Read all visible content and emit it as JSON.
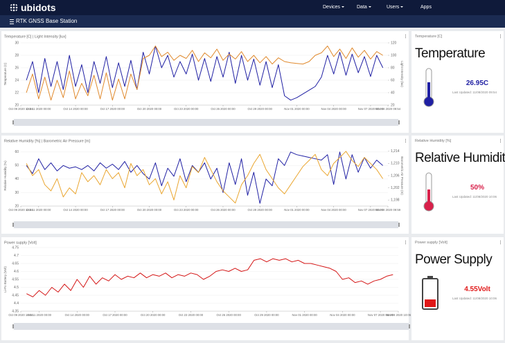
{
  "header": {
    "logo": "ubidots",
    "nav": [
      "Devices",
      "Data",
      "Users",
      "Apps"
    ],
    "dashboard": "RTK GNSS Base Station"
  },
  "chart_data": [
    {
      "type": "line",
      "title": "Temperature [C] | Light Intensity [lux]",
      "y_label": "Temperature (C)",
      "y2_label": "Light Intensity (lux)",
      "x": [
        "2020-10-10T00:00",
        "2020-10-10T12:00",
        "2020-10-11T00:00",
        "2020-10-11T12:00",
        "2020-10-12T00:00",
        "2020-10-12T12:00",
        "2020-10-13T00:00",
        "2020-10-13T12:00",
        "2020-10-14T00:00",
        "2020-10-14T12:00",
        "2020-10-15T00:00",
        "2020-10-15T12:00",
        "2020-10-16T00:00",
        "2020-10-16T12:00",
        "2020-10-17T00:00",
        "2020-10-17T12:00",
        "2020-10-18T00:00",
        "2020-10-18T12:00",
        "2020-10-19T00:00",
        "2020-10-19T12:00",
        "2020-10-20T00:00",
        "2020-10-20T12:00",
        "2020-10-21T00:00",
        "2020-10-21T12:00",
        "2020-10-22T00:00",
        "2020-10-22T12:00",
        "2020-10-23T00:00",
        "2020-10-23T12:00",
        "2020-10-24T00:00",
        "2020-10-24T12:00",
        "2020-10-25T00:00",
        "2020-10-25T12:00",
        "2020-10-26T00:00",
        "2020-10-26T12:00",
        "2020-10-27T00:00",
        "2020-10-27T12:00",
        "2020-10-28T00:00",
        "2020-10-28T12:00",
        "2020-10-29T00:00",
        "2020-10-29T12:00",
        "2020-10-30T00:00",
        "2020-10-30T12:00",
        "2020-10-31T00:00",
        "2020-10-31T12:00",
        "2020-11-01T00:00",
        "2020-11-01T12:00",
        "2020-11-02T00:00",
        "2020-11-02T12:00",
        "2020-11-03T00:00",
        "2020-11-03T12:00",
        "2020-11-04T00:00",
        "2020-11-04T12:00",
        "2020-11-05T00:00",
        "2020-11-05T12:00",
        "2020-11-06T00:00",
        "2020-11-06T12:00",
        "2020-11-07T00:00",
        "2020-11-07T12:00",
        "2020-11-08T00:00"
      ],
      "xlim": [
        "2020-10-09T13:04",
        "2020-11-08T09:54"
      ],
      "xticks": [
        {
          "value": "2020-10-09T13:04",
          "label": "Oct 09 2020 13:04"
        },
        {
          "value": "2020-10-11T00:00",
          "label": "Oct 11 2020 00:00"
        },
        {
          "value": "2020-10-14T00:00",
          "label": "Oct 14 2020 00:00"
        },
        {
          "value": "2020-10-17T00:00",
          "label": "Oct 17 2020 00:00"
        },
        {
          "value": "2020-10-20T00:00",
          "label": "Oct 20 2020 00:00"
        },
        {
          "value": "2020-10-23T00:00",
          "label": "Oct 23 2020 00:00"
        },
        {
          "value": "2020-10-26T00:00",
          "label": "Oct 26 2020 00:00"
        },
        {
          "value": "2020-10-29T00:00",
          "label": "Oct 29 2020 00:00"
        },
        {
          "value": "2020-11-01T00:00",
          "label": "Nov 01 2020 00:00"
        },
        {
          "value": "2020-11-04T00:00",
          "label": "Nov 04 2020 00:00"
        },
        {
          "value": "2020-11-07T00:00",
          "label": "Nov 07 2020 00:00"
        },
        {
          "value": "2020-11-08T09:54",
          "label": "Nov 08 2020 09:54"
        }
      ],
      "ylim": [
        20,
        30
      ],
      "yticks": [
        20,
        22,
        24,
        26,
        28,
        30
      ],
      "y2lim": [
        20,
        120
      ],
      "y2ticks": [
        20,
        40,
        60,
        80,
        100,
        120
      ],
      "series": [
        {
          "color": "#1f1fa3",
          "values": [
            24,
            27,
            22,
            27.5,
            23,
            27,
            22.5,
            28,
            23,
            26.5,
            22,
            27,
            23.5,
            27.8,
            22.8,
            26.8,
            23,
            27.2,
            22.5,
            28.5,
            25,
            29.5,
            26,
            28,
            24.5,
            27,
            25,
            28.2,
            24,
            27.5,
            23.8,
            27.8,
            24.5,
            28.5,
            23.5,
            28,
            24,
            27.4,
            23.2,
            27,
            22.8,
            26.5,
            21.5,
            20.8,
            21.2,
            21.8,
            22.4,
            23,
            24.5,
            28,
            25,
            28.5,
            24.8,
            28.2,
            25.2,
            27.8,
            24.6,
            28,
            26
          ]
        },
        {
          "color": "#e0892c",
          "axis": "y2",
          "values": [
            40,
            70,
            30,
            65,
            28,
            60,
            32,
            75,
            30,
            55,
            35,
            68,
            30,
            72,
            28,
            62,
            30,
            70,
            45,
            95,
            100,
            115,
            98,
            105,
            92,
            100,
            95,
            108,
            90,
            104,
            96,
            110,
            92,
            102,
            94,
            106,
            90,
            100,
            88,
            98,
            86,
            96,
            90,
            88,
            87,
            86,
            90,
            100,
            104,
            115,
            98,
            110,
            95,
            112,
            97,
            108,
            94,
            106,
            100
          ]
        }
      ]
    },
    {
      "type": "line",
      "title": "Relative Humidity [%] | Barometric Air Pressure [m]",
      "y_label": "Relative Humidity (%)",
      "y2_label": "Barometric Air Pressure (m)",
      "x": [
        "2020-10-10T00:00",
        "2020-10-10T12:00",
        "2020-10-11T00:00",
        "2020-10-11T12:00",
        "2020-10-12T00:00",
        "2020-10-12T12:00",
        "2020-10-13T00:00",
        "2020-10-13T12:00",
        "2020-10-14T00:00",
        "2020-10-14T12:00",
        "2020-10-15T00:00",
        "2020-10-15T12:00",
        "2020-10-16T00:00",
        "2020-10-16T12:00",
        "2020-10-17T00:00",
        "2020-10-17T12:00",
        "2020-10-18T00:00",
        "2020-10-18T12:00",
        "2020-10-19T00:00",
        "2020-10-19T12:00",
        "2020-10-20T00:00",
        "2020-10-20T12:00",
        "2020-10-21T00:00",
        "2020-10-21T12:00",
        "2020-10-22T00:00",
        "2020-10-22T12:00",
        "2020-10-23T00:00",
        "2020-10-23T12:00",
        "2020-10-24T00:00",
        "2020-10-24T12:00",
        "2020-10-25T00:00",
        "2020-10-25T12:00",
        "2020-10-26T00:00",
        "2020-10-26T12:00",
        "2020-10-27T00:00",
        "2020-10-27T12:00",
        "2020-10-28T00:00",
        "2020-10-28T12:00",
        "2020-10-29T00:00",
        "2020-10-29T12:00",
        "2020-10-30T00:00",
        "2020-10-30T12:00",
        "2020-10-31T00:00",
        "2020-10-31T12:00",
        "2020-11-01T00:00",
        "2020-11-01T12:00",
        "2020-11-02T00:00",
        "2020-11-02T12:00",
        "2020-11-03T00:00",
        "2020-11-03T12:00",
        "2020-11-04T00:00",
        "2020-11-04T12:00",
        "2020-11-05T00:00",
        "2020-11-05T12:00",
        "2020-11-06T00:00",
        "2020-11-06T12:00",
        "2020-11-07T00:00",
        "2020-11-07T12:00",
        "2020-11-08T00:00"
      ],
      "xlim": [
        "2020-10-09T13:04",
        "2020-11-08T09:59"
      ],
      "xticks": [
        {
          "value": "2020-10-09T13:04",
          "label": "Oct 09 2020 13:04"
        },
        {
          "value": "2020-10-11T00:00",
          "label": "Oct 11 2020 00:00"
        },
        {
          "value": "2020-10-14T00:00",
          "label": "Oct 14 2020 00:00"
        },
        {
          "value": "2020-10-17T00:00",
          "label": "Oct 17 2020 00:00"
        },
        {
          "value": "2020-10-20T00:00",
          "label": "Oct 20 2020 00:00"
        },
        {
          "value": "2020-10-23T00:00",
          "label": "Oct 23 2020 00:00"
        },
        {
          "value": "2020-10-26T00:00",
          "label": "Oct 26 2020 00:00"
        },
        {
          "value": "2020-10-29T00:00",
          "label": "Oct 29 2020 00:00"
        },
        {
          "value": "2020-11-01T00:00",
          "label": "Nov 01 2020 00:00"
        },
        {
          "value": "2020-11-04T00:00",
          "label": "Nov 04 2020 00:00"
        },
        {
          "value": "2020-11-07T00:00",
          "label": "Nov 07 2020 00:00"
        },
        {
          "value": "2020-11-08T09:59",
          "label": "Nov 08 2020 09:59"
        }
      ],
      "ylim": [
        20,
        65
      ],
      "yticks": [
        20,
        30,
        40,
        50,
        60
      ],
      "y2lim": [
        1196,
        1216
      ],
      "y2ticks": [
        {
          "value": 1198,
          "label": "1,198"
        },
        {
          "value": 1202,
          "label": "1,202"
        },
        {
          "value": 1206,
          "label": "1,206"
        },
        {
          "value": 1210,
          "label": "1,210"
        },
        {
          "value": 1214,
          "label": "1,214"
        }
      ],
      "series": [
        {
          "color": "#1f1fa3",
          "values": [
            50,
            44,
            55,
            47,
            52,
            46,
            50,
            48,
            49,
            47,
            50,
            46,
            52,
            48,
            51,
            47,
            53,
            45,
            50,
            44,
            40,
            52,
            35,
            48,
            42,
            55,
            38,
            50,
            45,
            52,
            40,
            48,
            30,
            52,
            36,
            55,
            28,
            45,
            22,
            40,
            35,
            55,
            50,
            60,
            58,
            57,
            56,
            55,
            54,
            58,
            36,
            60,
            40,
            58,
            45,
            56,
            48,
            54,
            50
          ]
        },
        {
          "color": "#eaa630",
          "axis": "y2",
          "values": [
            1210,
            1206,
            1208,
            1203,
            1201,
            1205,
            1199,
            1202,
            1200,
            1207,
            1204,
            1206,
            1203,
            1208,
            1205,
            1207,
            1202,
            1210,
            1206,
            1208,
            1203,
            1205,
            1200,
            1204,
            1198,
            1206,
            1202,
            1209,
            1207,
            1212,
            1208,
            1204,
            1201,
            1199,
            1197,
            1203,
            1206,
            1210,
            1213,
            1208,
            1205,
            1202,
            1200,
            1203,
            1206,
            1209,
            1211,
            1213,
            1208,
            1206,
            1210,
            1212,
            1214,
            1211,
            1209,
            1212,
            1210,
            1208,
            1205
          ]
        }
      ]
    },
    {
      "type": "line",
      "title": "Power supply [Volt]",
      "y_label": "Li-Po Battery (Volt)",
      "x": [
        "2020-10-10T00:00",
        "2020-10-10T12:00",
        "2020-10-11T00:00",
        "2020-10-11T12:00",
        "2020-10-12T00:00",
        "2020-10-12T12:00",
        "2020-10-13T00:00",
        "2020-10-13T12:00",
        "2020-10-14T00:00",
        "2020-10-14T12:00",
        "2020-10-15T00:00",
        "2020-10-15T12:00",
        "2020-10-16T00:00",
        "2020-10-16T12:00",
        "2020-10-17T00:00",
        "2020-10-17T12:00",
        "2020-10-18T00:00",
        "2020-10-18T12:00",
        "2020-10-19T00:00",
        "2020-10-19T12:00",
        "2020-10-20T00:00",
        "2020-10-20T12:00",
        "2020-10-21T00:00",
        "2020-10-21T12:00",
        "2020-10-22T00:00",
        "2020-10-22T12:00",
        "2020-10-23T00:00",
        "2020-10-23T12:00",
        "2020-10-24T00:00",
        "2020-10-24T12:00",
        "2020-10-25T00:00",
        "2020-10-25T12:00",
        "2020-10-26T00:00",
        "2020-10-26T12:00",
        "2020-10-27T00:00",
        "2020-10-27T12:00",
        "2020-10-28T00:00",
        "2020-10-28T12:00",
        "2020-10-29T00:00",
        "2020-10-29T12:00",
        "2020-10-30T00:00",
        "2020-10-30T12:00",
        "2020-10-31T00:00",
        "2020-10-31T12:00",
        "2020-11-01T00:00",
        "2020-11-01T12:00",
        "2020-11-02T00:00",
        "2020-11-02T12:00",
        "2020-11-03T00:00",
        "2020-11-03T12:00",
        "2020-11-04T00:00",
        "2020-11-04T12:00",
        "2020-11-05T00:00",
        "2020-11-05T12:00",
        "2020-11-06T00:00",
        "2020-11-06T12:00",
        "2020-11-07T00:00",
        "2020-11-07T12:00",
        "2020-11-08T00:00"
      ],
      "xlim": [
        "2020-10-09T13:04",
        "2020-11-08T10:06"
      ],
      "xticks": [
        {
          "value": "2020-10-09T13:04",
          "label": "Oct 09 2020 13:04"
        },
        {
          "value": "2020-10-11T00:00",
          "label": "Oct 11 2020 00:00"
        },
        {
          "value": "2020-10-14T00:00",
          "label": "Oct 14 2020 00:00"
        },
        {
          "value": "2020-10-17T00:00",
          "label": "Oct 17 2020 00:00"
        },
        {
          "value": "2020-10-20T00:00",
          "label": "Oct 20 2020 00:00"
        },
        {
          "value": "2020-10-23T00:00",
          "label": "Oct 23 2020 00:00"
        },
        {
          "value": "2020-10-26T00:00",
          "label": "Oct 26 2020 00:00"
        },
        {
          "value": "2020-10-29T00:00",
          "label": "Oct 29 2020 00:00"
        },
        {
          "value": "2020-11-01T00:00",
          "label": "Nov 01 2020 00:00"
        },
        {
          "value": "2020-11-04T00:00",
          "label": "Nov 04 2020 00:00"
        },
        {
          "value": "2020-11-07T00:00",
          "label": "Nov 07 2020 00:00"
        },
        {
          "value": "2020-11-08T10:06",
          "label": "Nov 08 2020 10:06"
        }
      ],
      "ylim": [
        4.35,
        4.75
      ],
      "yticks": [
        4.35,
        4.4,
        4.45,
        4.5,
        4.55,
        4.6,
        4.65,
        4.7,
        4.75
      ],
      "series": [
        {
          "color": "#d41414",
          "values": [
            4.46,
            4.44,
            4.48,
            4.45,
            4.5,
            4.47,
            4.52,
            4.48,
            4.55,
            4.5,
            4.57,
            4.52,
            4.56,
            4.54,
            4.58,
            4.55,
            4.57,
            4.56,
            4.59,
            4.56,
            4.58,
            4.57,
            4.59,
            4.56,
            4.58,
            4.57,
            4.59,
            4.58,
            4.55,
            4.57,
            4.6,
            4.61,
            4.6,
            4.62,
            4.6,
            4.61,
            4.67,
            4.68,
            4.66,
            4.68,
            4.67,
            4.68,
            4.66,
            4.67,
            4.65,
            4.65,
            4.64,
            4.63,
            4.62,
            4.6,
            4.55,
            4.56,
            4.53,
            4.54,
            4.52,
            4.54,
            4.55,
            4.57,
            4.58
          ]
        }
      ]
    }
  ],
  "widgets": [
    {
      "title": "Temperature [C]",
      "label": "Temperature",
      "value": "26.95C",
      "updated": "Last Updated: 11/08/2020 09:54",
      "color": "#1f1fa3"
    },
    {
      "title": "Relative Humidity [%]",
      "label": "Relative Humidity",
      "value": "50%",
      "updated": "Last Updated: 11/08/2020 10:06",
      "color": "#d8204a"
    },
    {
      "title": "Power supply [Volt]",
      "label": "Power Supply",
      "value": "4.55Volt",
      "updated": "Last Updated: 11/08/2020 10:06",
      "color": "#e01818"
    }
  ]
}
